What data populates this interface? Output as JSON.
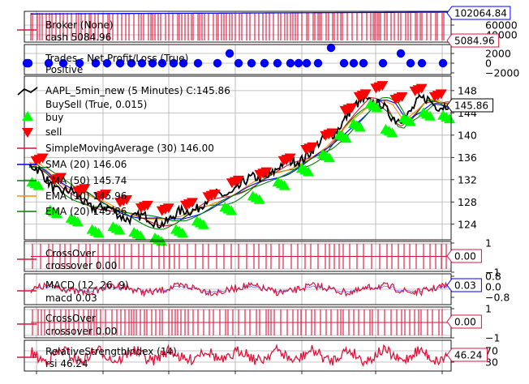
{
  "colors": {
    "close": "#000000",
    "buy": "#00ff00",
    "sell": "#ff0000",
    "sma30": "#dc143c",
    "sma20": "#0000ff",
    "sma50": "#008000",
    "ema10": "#ff8c00",
    "ema": "#008000",
    "broker_value": "#0000ff",
    "broker_cash": "#dc143c",
    "trades_positive": "#0000ff",
    "crossover": "#dc143c",
    "macd": "#dc143c",
    "macd_signal": "#0000ff",
    "rsi": "#dc143c",
    "grid": "#b0b0b0"
  },
  "panels": [
    {
      "id": "broker",
      "legend": [
        "Broker (None)",
        "cash 5084.96"
      ],
      "yticks": [
        "60000",
        "40000"
      ],
      "value_label": "102064.84",
      "cash_label": "5084.96"
    },
    {
      "id": "trades",
      "legend": [
        "Trades - Net Profit/Loss (True)",
        "Positive"
      ],
      "yticks": [
        "2000",
        "0",
        "−2000"
      ]
    },
    {
      "id": "price",
      "legend": [
        "AAPL_5min_new (5 Minutes) C:145.86",
        "BuySell (True, 0.015)",
        "buy",
        "sell",
        "SimpleMovingAverage (30) 146.00",
        "SMA (20) 146.06",
        "SMA (50) 145.74",
        "EMA (10) 145.96",
        "EMA (20) 145.86"
      ],
      "yticks": [
        "148",
        "144",
        "140",
        "136",
        "132",
        "128",
        "124"
      ],
      "last_close_label": "145.86"
    },
    {
      "id": "crossover1",
      "legend": [
        "CrossOver",
        "crossover 0.00"
      ],
      "yticks": [
        "1",
        "−1"
      ],
      "value_label": "0.00"
    },
    {
      "id": "macd",
      "legend": [
        "MACD (12, 26, 9)",
        "macd 0.03"
      ],
      "yticks": [
        "0.8",
        "0.0",
        "−0.8"
      ],
      "value_label": "0.03"
    },
    {
      "id": "crossover2",
      "legend": [
        "CrossOver",
        "crossover 0.00"
      ],
      "yticks": [
        "1",
        "−1"
      ],
      "value_label": "0.00"
    },
    {
      "id": "rsi",
      "legend": [
        "RelativeStrengthIndex (14)",
        "rsi 46.24"
      ],
      "yticks": [
        "70",
        "30"
      ],
      "value_label": "46.24"
    }
  ],
  "chart_data": [
    {
      "type": "line",
      "title": "",
      "series": [
        {
          "name": "Broker (None)",
          "values": [
            100000,
            100400,
            100900,
            101300,
            101800,
            102064.84
          ]
        },
        {
          "name": "cash 5084.96",
          "values": [
            5084.96
          ]
        }
      ],
      "ylim": [
        0,
        110000
      ]
    },
    {
      "type": "scatter",
      "series": [
        {
          "name": "Positive",
          "values": [
            0,
            0,
            0,
            0,
            0,
            0,
            0,
            0,
            1000,
            0,
            0,
            0,
            0,
            0
          ]
        }
      ],
      "ylim": [
        -2500,
        2500
      ]
    },
    {
      "type": "line",
      "x_count": 300,
      "close_anchors": [
        [
          0,
          134.5
        ],
        [
          10,
          132.5
        ],
        [
          20,
          130.5
        ],
        [
          30,
          129.5
        ],
        [
          40,
          128
        ],
        [
          55,
          126.5
        ],
        [
          70,
          125.5
        ],
        [
          90,
          124.5
        ],
        [
          100,
          124.8
        ],
        [
          110,
          126
        ],
        [
          125,
          128
        ],
        [
          140,
          129.5
        ],
        [
          160,
          132
        ],
        [
          175,
          133.5
        ],
        [
          190,
          135.5
        ],
        [
          205,
          137.5
        ],
        [
          215,
          140
        ],
        [
          222,
          142
        ],
        [
          230,
          144
        ],
        [
          240,
          146.5
        ],
        [
          245,
          146.5
        ],
        [
          252,
          145.5
        ],
        [
          258,
          143
        ],
        [
          262,
          142.5
        ],
        [
          270,
          144
        ],
        [
          278,
          146
        ],
        [
          285,
          146
        ],
        [
          290,
          145.5
        ],
        [
          300,
          145.86
        ]
      ],
      "buy_anchors": [
        [
          2,
          131.5
        ],
        [
          15,
          126.5
        ],
        [
          30,
          125
        ],
        [
          45,
          123
        ],
        [
          60,
          123.5
        ],
        [
          75,
          122.5
        ],
        [
          90,
          121.5
        ],
        [
          105,
          123
        ],
        [
          120,
          124.5
        ],
        [
          140,
          127
        ],
        [
          160,
          129
        ],
        [
          178,
          131.5
        ],
        [
          195,
          134
        ],
        [
          210,
          136.5
        ],
        [
          222,
          140
        ],
        [
          232,
          142
        ],
        [
          244,
          145.5
        ],
        [
          255,
          141
        ],
        [
          268,
          143
        ],
        [
          282,
          144
        ],
        [
          296,
          143.5
        ]
      ],
      "sell_anchors": [
        [
          5,
          135.5
        ],
        [
          18,
          132
        ],
        [
          35,
          130
        ],
        [
          50,
          129
        ],
        [
          65,
          128
        ],
        [
          80,
          127
        ],
        [
          95,
          126.5
        ],
        [
          112,
          127.5
        ],
        [
          128,
          129
        ],
        [
          145,
          131.5
        ],
        [
          165,
          133
        ],
        [
          182,
          135.5
        ],
        [
          198,
          137.5
        ],
        [
          212,
          140
        ],
        [
          226,
          144.5
        ],
        [
          236,
          147
        ],
        [
          248,
          148.5
        ],
        [
          262,
          146.5
        ],
        [
          276,
          148
        ],
        [
          290,
          147
        ]
      ],
      "ylim": [
        121.2,
        150.6
      ],
      "yticks": [
        124,
        128,
        132,
        136,
        140,
        144,
        148
      ],
      "last_close": 145.86
    },
    {
      "type": "line",
      "series": [
        {
          "name": "crossover",
          "values": [
            0,
            1,
            0,
            -1,
            0,
            1,
            0,
            -1,
            0,
            1,
            0,
            -1
          ]
        }
      ],
      "ylim": [
        -1,
        1
      ]
    },
    {
      "type": "line",
      "series": [
        {
          "name": "macd",
          "values": [
            0.1,
            -0.2,
            0.25,
            -0.35,
            0.15,
            -0.1,
            0.3,
            -0.25,
            0.05,
            0.03
          ]
        }
      ],
      "ylim": [
        -0.8,
        0.8
      ]
    },
    {
      "type": "line",
      "series": [
        {
          "name": "crossover",
          "values": [
            0,
            1,
            0,
            -1,
            0,
            1,
            0,
            -1,
            0
          ]
        }
      ],
      "ylim": [
        -1,
        1
      ]
    },
    {
      "type": "line",
      "series": [
        {
          "name": "rsi",
          "values": [
            50,
            62,
            40,
            58,
            35,
            66,
            45,
            55,
            38,
            46.24
          ]
        }
      ],
      "ylim": [
        20,
        80
      ],
      "yticks": [
        30,
        70
      ]
    }
  ]
}
